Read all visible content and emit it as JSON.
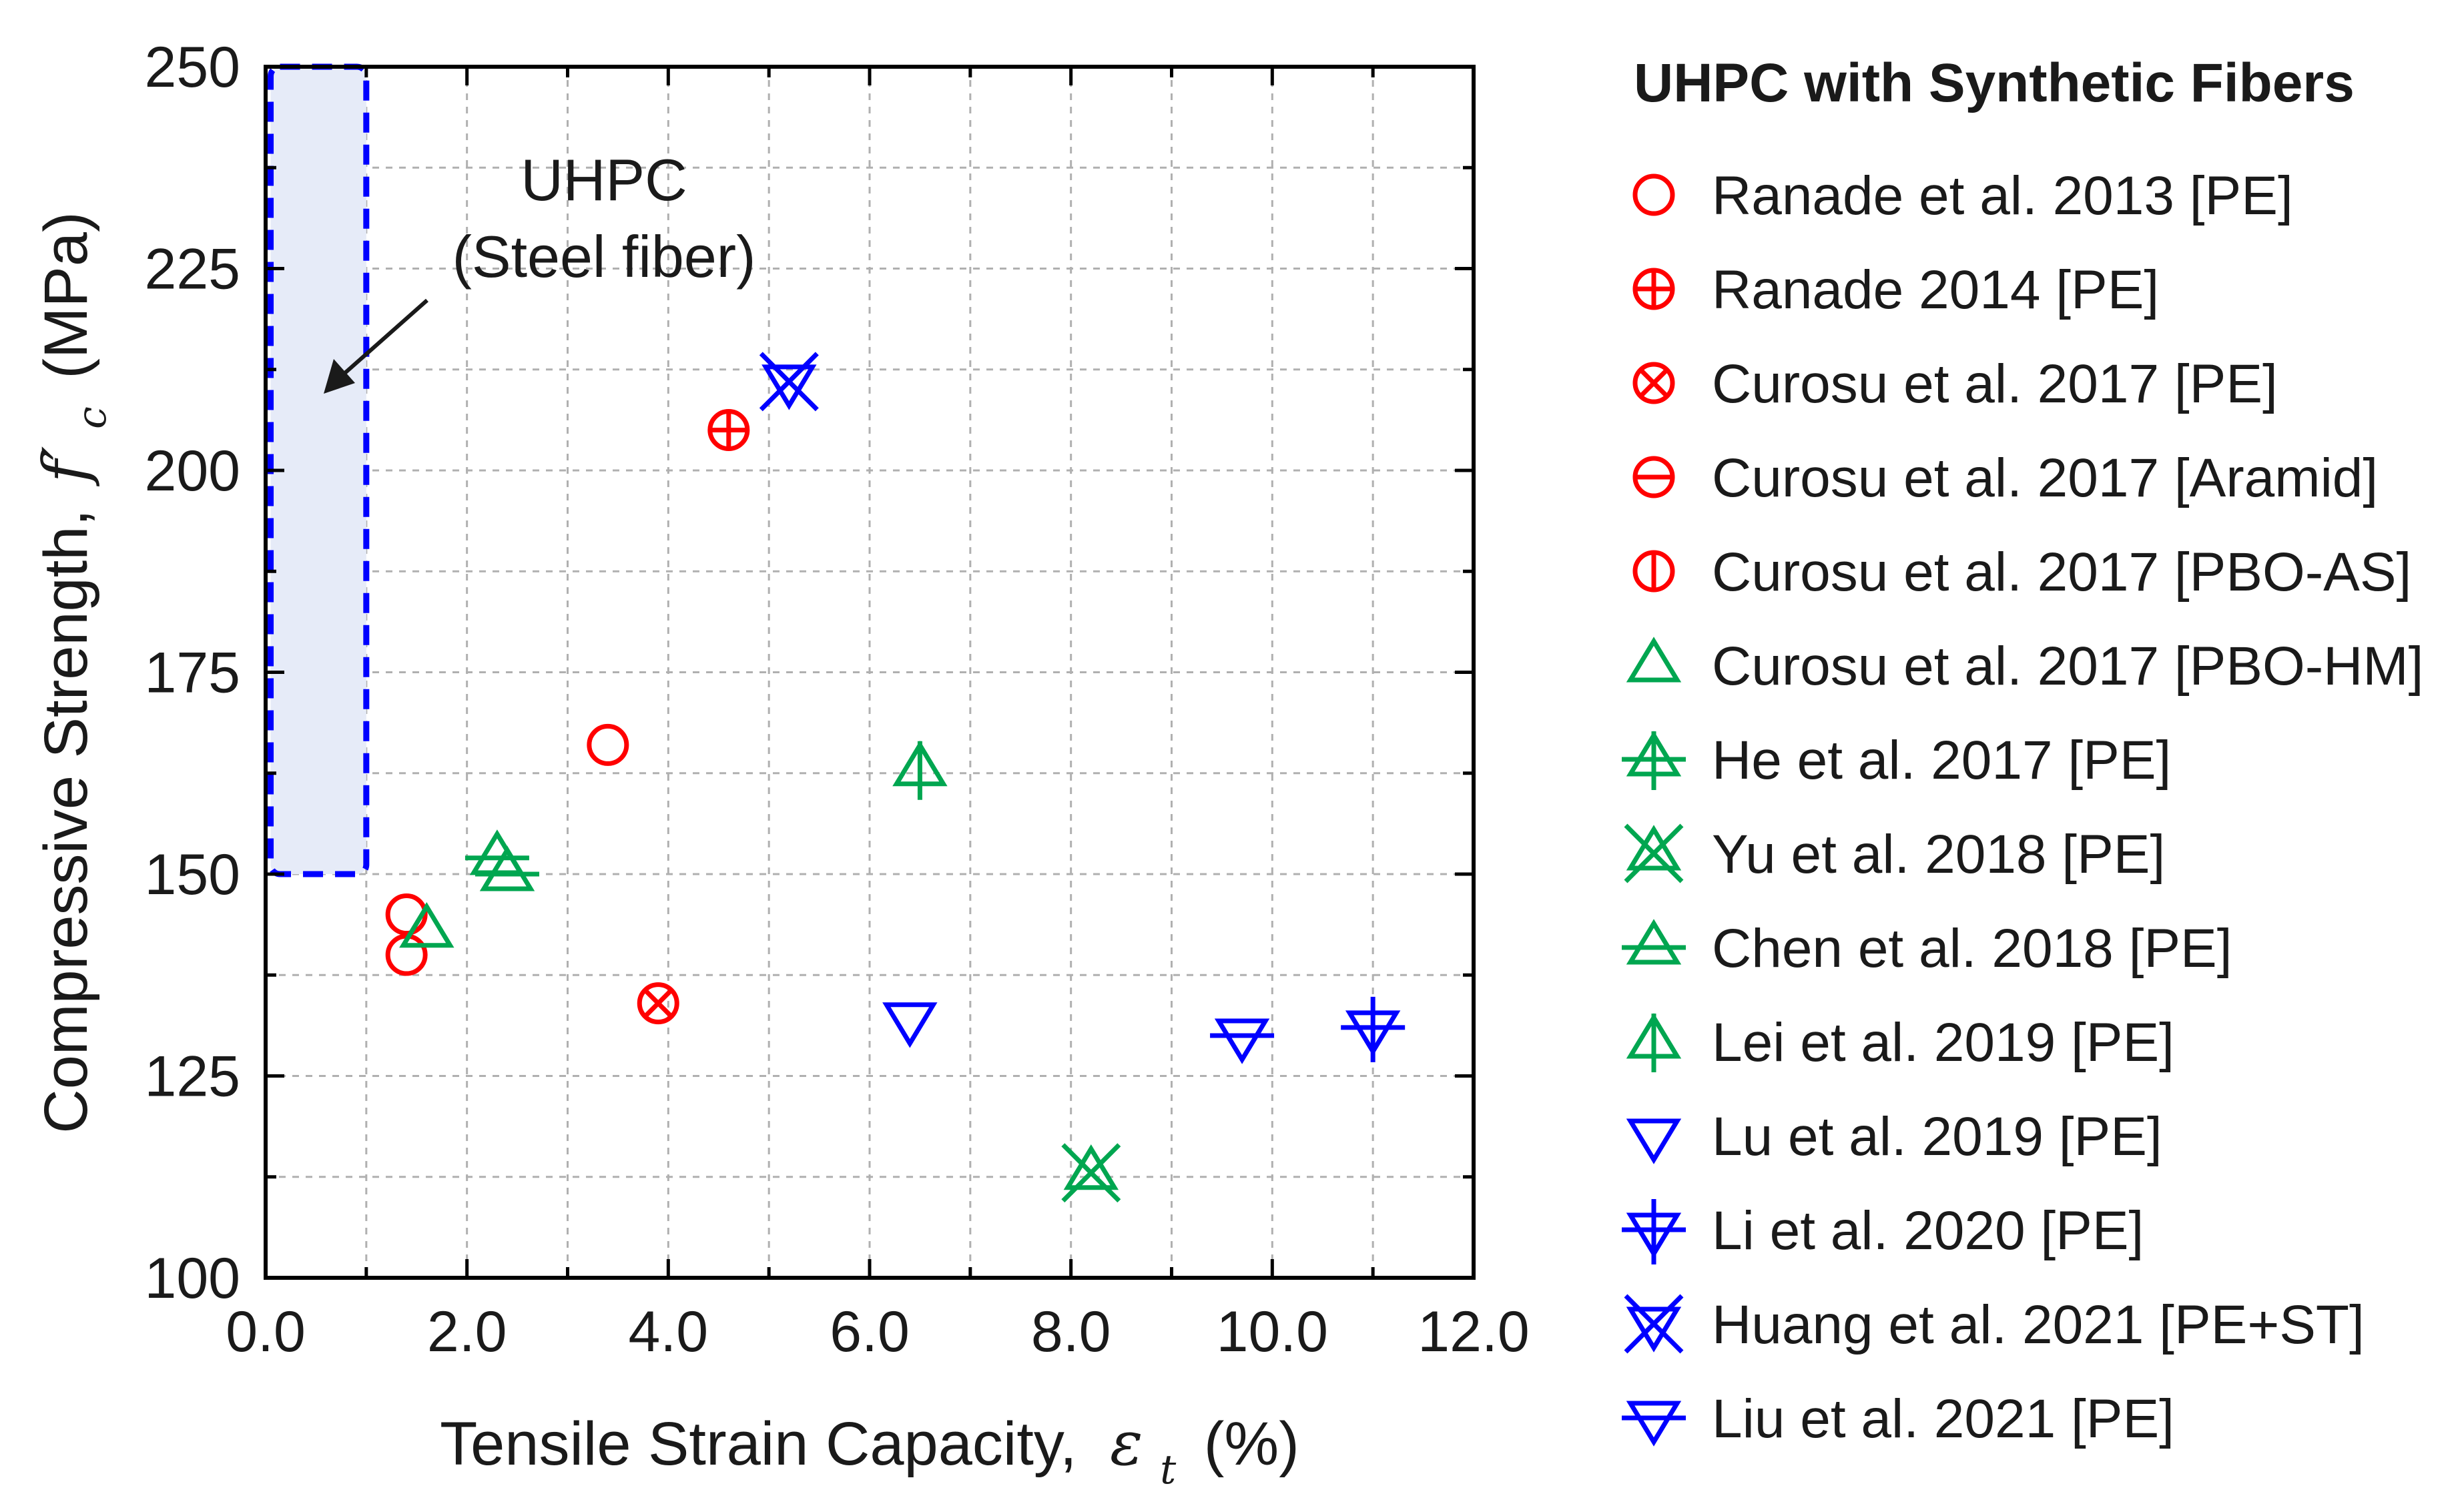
{
  "chart_data": {
    "type": "scatter",
    "xlabel": "Tensile Strain Capacity,",
    "xlabel_symbol": "ε",
    "xlabel_sub": "t",
    "xlabel_unit": "(%)",
    "ylabel": "Compressive Strength,",
    "ylabel_symbol": "f′",
    "ylabel_sub": "c",
    "ylabel_unit": "(MPa)",
    "xlim": [
      0,
      12
    ],
    "ylim": [
      100,
      250
    ],
    "xticks": [
      0,
      2,
      4,
      6,
      8,
      10,
      12
    ],
    "xtick_labels": [
      "0.0",
      "2.0",
      "4.0",
      "6.0",
      "8.0",
      "10.0",
      "12.0"
    ],
    "yticks": [
      100,
      125,
      150,
      175,
      200,
      225,
      250
    ],
    "ytick_labels": [
      "100",
      "125",
      "150",
      "175",
      "200",
      "225",
      "250"
    ],
    "grid": true,
    "legend_title": "UHPC with Synthetic Fibers",
    "legend_position": "right",
    "region": {
      "label_line1": "UHPC",
      "label_line2": "(Steel fiber)",
      "x_range": [
        0.05,
        1.0
      ],
      "y_range": [
        150,
        250
      ]
    },
    "series": [
      {
        "name": "Ranade et al. 2013 [PE]",
        "marker": "circle",
        "color": "#ff0000",
        "points": [
          [
            1.4,
            140
          ],
          [
            1.4,
            145
          ],
          [
            3.4,
            166
          ]
        ]
      },
      {
        "name": "Ranade 2014 [PE]",
        "marker": "circle-plus",
        "color": "#ff0000",
        "points": [
          [
            4.6,
            205
          ]
        ]
      },
      {
        "name": "Curosu et al. 2017 [PE]",
        "marker": "circle-x",
        "color": "#ff0000",
        "points": [
          [
            3.9,
            134
          ]
        ]
      },
      {
        "name": "Curosu et al. 2017 [Aramid]",
        "marker": "circle-hline",
        "color": "#ff0000",
        "points": []
      },
      {
        "name": "Curosu et al. 2017 [PBO-AS]",
        "marker": "circle-vline",
        "color": "#ff0000",
        "points": []
      },
      {
        "name": "Curosu et al. 2017 [PBO-HM]",
        "marker": "triangle-up",
        "color": "#00a650",
        "points": [
          [
            1.6,
            143
          ]
        ]
      },
      {
        "name": "He et al. 2017 [PE]",
        "marker": "triangle-up-plus",
        "color": "#00a650",
        "points": []
      },
      {
        "name": "Yu et al. 2018 [PE]",
        "marker": "triangle-up-x",
        "color": "#00a650",
        "points": [
          [
            8.2,
            113
          ]
        ]
      },
      {
        "name": "Chen et al. 2018 [PE]",
        "marker": "triangle-up-hline",
        "color": "#00a650",
        "points": [
          [
            2.3,
            152
          ],
          [
            2.4,
            150
          ]
        ]
      },
      {
        "name": "Lei et al. 2019 [PE]",
        "marker": "triangle-up-vline",
        "color": "#00a650",
        "points": [
          [
            6.5,
            163
          ]
        ]
      },
      {
        "name": "Lu et al. 2019 [PE]",
        "marker": "triangle-down",
        "color": "#0000ff",
        "points": [
          [
            6.4,
            132
          ]
        ]
      },
      {
        "name": "Li et al. 2020 [PE]",
        "marker": "triangle-down-plus",
        "color": "#0000ff",
        "points": [
          [
            11.0,
            131
          ]
        ]
      },
      {
        "name": "Huang et al. 2021 [PE+ST]",
        "marker": "triangle-down-x",
        "color": "#0000ff",
        "points": [
          [
            5.2,
            211
          ]
        ]
      },
      {
        "name": "Liu et al. 2021 [PE]",
        "marker": "triangle-down-hline",
        "color": "#0000ff",
        "points": [
          [
            9.7,
            130
          ]
        ]
      }
    ]
  }
}
